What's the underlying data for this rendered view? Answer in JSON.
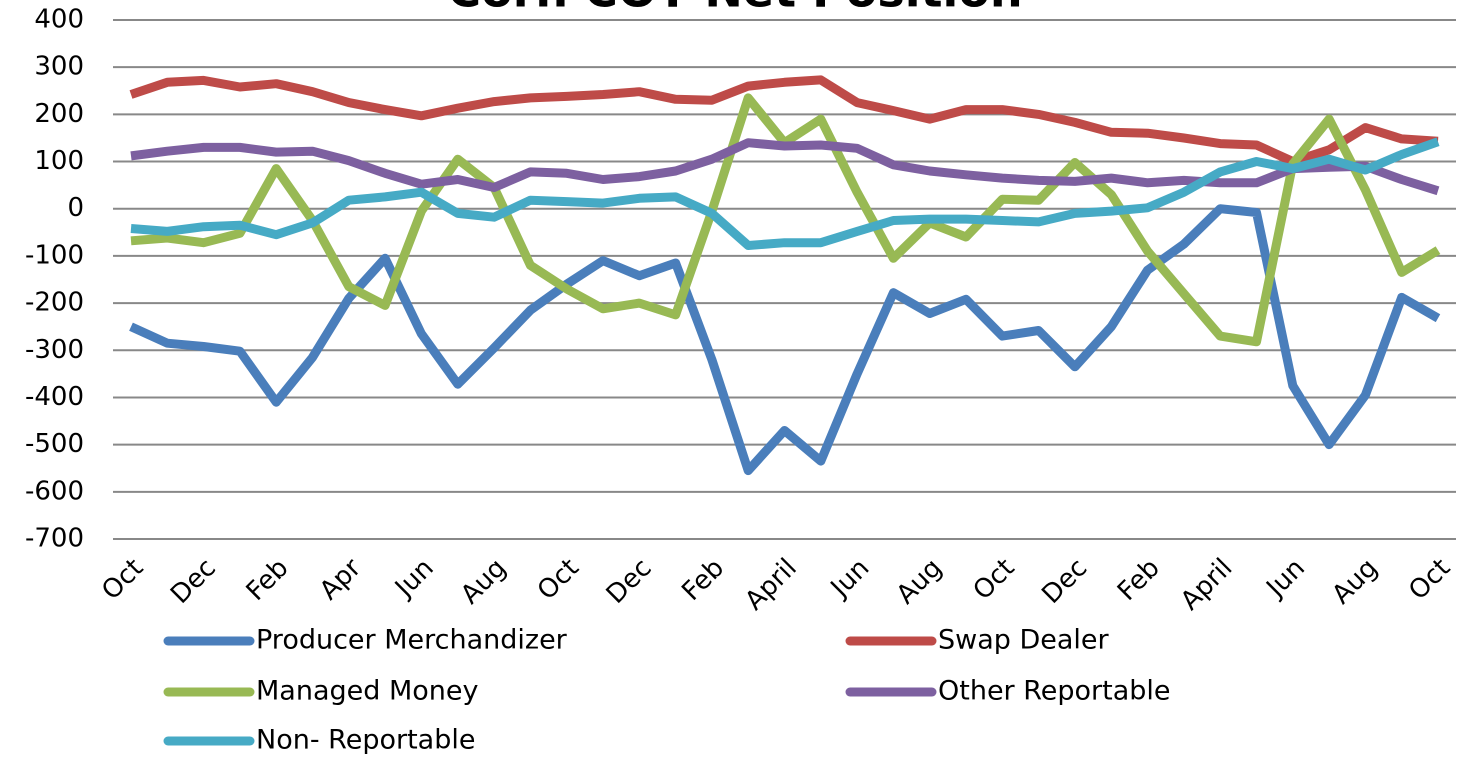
{
  "chart_data": {
    "type": "line",
    "title": "Corn COT Net Position",
    "categories": [
      "Oct",
      null,
      "Dec",
      null,
      "Feb",
      null,
      "Apr",
      null,
      "Jun",
      null,
      "Aug",
      null,
      "Oct",
      null,
      "Dec",
      null,
      "Feb",
      null,
      "April",
      null,
      "Jun",
      null,
      "Aug",
      null,
      "Oct",
      null,
      "Dec",
      null,
      "Feb",
      null,
      "April",
      null,
      "Jun",
      null,
      "Aug",
      null,
      "Oct"
    ],
    "series": [
      {
        "name": "Producer Merchandizer",
        "color": "#4a7ebb",
        "values": [
          -250,
          -285,
          -292,
          -302,
          -410,
          -315,
          -190,
          -105,
          -265,
          -372,
          -295,
          -215,
          -160,
          -110,
          -142,
          -115,
          -320,
          -555,
          -470,
          -535,
          -350,
          -178,
          -222,
          -192,
          -270,
          -258,
          -335,
          -250,
          -130,
          -75,
          0,
          -8,
          -375,
          -500,
          -395,
          -188,
          -232
        ]
      },
      {
        "name": "Swap Dealer",
        "color": "#be4b48",
        "values": [
          242,
          268,
          272,
          258,
          265,
          248,
          225,
          210,
          197,
          213,
          227,
          235,
          238,
          242,
          248,
          232,
          230,
          260,
          268,
          273,
          225,
          208,
          190,
          210,
          210,
          200,
          183,
          162,
          160,
          150,
          138,
          135,
          100,
          125,
          172,
          148,
          143
        ]
      },
      {
        "name": "Managed Money",
        "color": "#98b954",
        "values": [
          -68,
          -62,
          -72,
          -52,
          85,
          -25,
          -165,
          -205,
          -5,
          105,
          45,
          -120,
          -170,
          -212,
          -200,
          -225,
          -5,
          235,
          140,
          190,
          35,
          -105,
          -30,
          -60,
          20,
          18,
          98,
          30,
          -90,
          -180,
          -270,
          -282,
          95,
          190,
          40,
          -135,
          -88
        ]
      },
      {
        "name": "Other Reportable",
        "color": "#7d60a0",
        "values": [
          112,
          122,
          130,
          130,
          120,
          122,
          102,
          75,
          52,
          62,
          45,
          78,
          75,
          62,
          68,
          80,
          105,
          140,
          133,
          135,
          128,
          93,
          80,
          72,
          65,
          60,
          58,
          65,
          55,
          60,
          55,
          55,
          85,
          88,
          90,
          62,
          38
        ]
      },
      {
        "name": "Non- Reportable",
        "color": "#46aac5",
        "values": [
          -42,
          -48,
          -38,
          -35,
          -55,
          -30,
          18,
          25,
          35,
          -10,
          -18,
          18,
          15,
          12,
          22,
          25,
          -10,
          -78,
          -72,
          -72,
          -48,
          -25,
          -22,
          -22,
          -25,
          -28,
          -10,
          -5,
          2,
          35,
          78,
          100,
          85,
          105,
          82,
          115,
          142
        ]
      }
    ],
    "ylim": [
      -700,
      400
    ],
    "yticks": [
      -700,
      -600,
      -500,
      -400,
      -300,
      -200,
      -100,
      0,
      100,
      200,
      300,
      400
    ],
    "grid": true
  }
}
